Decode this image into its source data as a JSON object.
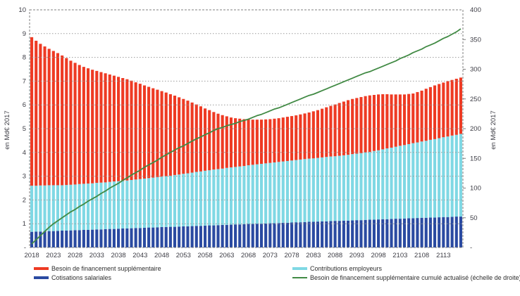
{
  "chart_data": {
    "type": "combo-stacked-bar-line",
    "title": "",
    "left_axis": {
      "title": "en Md€ 2017",
      "min": 0,
      "max": 10,
      "tick_step": 1,
      "tick_labels": [
        "10",
        "9",
        "8",
        "7",
        "6",
        "5",
        "4",
        "3",
        "2",
        "1",
        "-"
      ]
    },
    "right_axis": {
      "title": "en Md€ 2017",
      "min": 0,
      "max": 400,
      "tick_step": 50,
      "tick_labels": [
        "400",
        "350",
        "300",
        "250",
        "200",
        "150",
        "100",
        "50",
        "-"
      ]
    },
    "x_tick_labels": [
      "2018",
      "2023",
      "2028",
      "2033",
      "2038",
      "2043",
      "2048",
      "2053",
      "2058",
      "2063",
      "2068",
      "2073",
      "2078",
      "2083",
      "2088",
      "2093",
      "2098",
      "2103",
      "2108",
      "2113"
    ],
    "x": [
      2018,
      2019,
      2020,
      2021,
      2022,
      2023,
      2024,
      2025,
      2026,
      2027,
      2028,
      2029,
      2030,
      2031,
      2032,
      2033,
      2034,
      2035,
      2036,
      2037,
      2038,
      2039,
      2040,
      2041,
      2042,
      2043,
      2044,
      2045,
      2046,
      2047,
      2048,
      2049,
      2050,
      2051,
      2052,
      2053,
      2054,
      2055,
      2056,
      2057,
      2058,
      2059,
      2060,
      2061,
      2062,
      2063,
      2064,
      2065,
      2066,
      2067,
      2068,
      2069,
      2070,
      2071,
      2072,
      2073,
      2074,
      2075,
      2076,
      2077,
      2078,
      2079,
      2080,
      2081,
      2082,
      2083,
      2084,
      2085,
      2086,
      2087,
      2088,
      2089,
      2090,
      2091,
      2092,
      2093,
      2094,
      2095,
      2096,
      2097,
      2098,
      2099,
      2100,
      2101,
      2102,
      2103,
      2104,
      2105,
      2106,
      2107,
      2108,
      2109,
      2110,
      2111,
      2112,
      2113,
      2114,
      2115,
      2116,
      2117
    ],
    "series": [
      {
        "name": "Cotisations salariales",
        "type": "bar",
        "stack_index": 1,
        "color": "#2a4aa1",
        "values": [
          0.66,
          0.67,
          0.67,
          0.68,
          0.69,
          0.69,
          0.7,
          0.71,
          0.71,
          0.72,
          0.73,
          0.73,
          0.74,
          0.74,
          0.75,
          0.76,
          0.76,
          0.77,
          0.78,
          0.78,
          0.79,
          0.8,
          0.8,
          0.81,
          0.82,
          0.82,
          0.83,
          0.84,
          0.84,
          0.85,
          0.86,
          0.86,
          0.87,
          0.87,
          0.88,
          0.89,
          0.89,
          0.9,
          0.91,
          0.91,
          0.92,
          0.93,
          0.93,
          0.94,
          0.95,
          0.95,
          0.96,
          0.97,
          0.97,
          0.98,
          0.99,
          0.99,
          1.0,
          1.0,
          1.01,
          1.02,
          1.02,
          1.03,
          1.04,
          1.04,
          1.05,
          1.06,
          1.06,
          1.07,
          1.08,
          1.08,
          1.09,
          1.1,
          1.1,
          1.11,
          1.12,
          1.12,
          1.13,
          1.13,
          1.14,
          1.15,
          1.15,
          1.16,
          1.17,
          1.17,
          1.18,
          1.19,
          1.19,
          1.2,
          1.21,
          1.21,
          1.22,
          1.23,
          1.23,
          1.24,
          1.25,
          1.25,
          1.26,
          1.26,
          1.27,
          1.28,
          1.28,
          1.29,
          1.3,
          1.3
        ]
      },
      {
        "name": "Contributions employeurs",
        "type": "bar",
        "stack_index": 2,
        "color": "#7fd8e4",
        "values": [
          1.94,
          1.93,
          1.94,
          1.93,
          1.93,
          1.93,
          1.92,
          1.91,
          1.92,
          1.92,
          1.92,
          1.94,
          1.94,
          1.95,
          1.95,
          1.96,
          1.97,
          1.97,
          1.98,
          2.0,
          2.0,
          2.0,
          2.02,
          2.03,
          2.04,
          2.06,
          2.07,
          2.08,
          2.1,
          2.11,
          2.12,
          2.14,
          2.15,
          2.18,
          2.19,
          2.21,
          2.23,
          2.25,
          2.27,
          2.29,
          2.31,
          2.32,
          2.35,
          2.36,
          2.37,
          2.4,
          2.41,
          2.42,
          2.44,
          2.45,
          2.47,
          2.49,
          2.5,
          2.52,
          2.53,
          2.54,
          2.56,
          2.57,
          2.58,
          2.6,
          2.61,
          2.62,
          2.64,
          2.65,
          2.66,
          2.67,
          2.68,
          2.69,
          2.71,
          2.72,
          2.72,
          2.74,
          2.75,
          2.77,
          2.79,
          2.8,
          2.82,
          2.84,
          2.85,
          2.89,
          2.91,
          2.94,
          2.98,
          3.0,
          3.03,
          3.07,
          3.09,
          3.12,
          3.16,
          3.18,
          3.21,
          3.24,
          3.27,
          3.3,
          3.33,
          3.36,
          3.39,
          3.42,
          3.44,
          3.48
        ]
      },
      {
        "name": "Besoin de financement supplémentaire",
        "type": "bar",
        "stack_index": 3,
        "color": "#ee3a23",
        "values": [
          6.25,
          6.1,
          5.96,
          5.85,
          5.74,
          5.65,
          5.56,
          5.46,
          5.34,
          5.22,
          5.12,
          5.01,
          4.92,
          4.85,
          4.78,
          4.71,
          4.65,
          4.59,
          4.52,
          4.45,
          4.39,
          4.33,
          4.26,
          4.18,
          4.09,
          4.01,
          3.92,
          3.84,
          3.76,
          3.68,
          3.6,
          3.52,
          3.43,
          3.34,
          3.25,
          3.15,
          3.06,
          2.95,
          2.84,
          2.74,
          2.62,
          2.53,
          2.42,
          2.33,
          2.25,
          2.17,
          2.1,
          2.05,
          2.01,
          1.97,
          1.93,
          1.9,
          1.88,
          1.86,
          1.85,
          1.84,
          1.84,
          1.84,
          1.85,
          1.86,
          1.87,
          1.88,
          1.9,
          1.92,
          1.94,
          1.98,
          2.01,
          2.05,
          2.09,
          2.13,
          2.18,
          2.22,
          2.26,
          2.3,
          2.32,
          2.34,
          2.36,
          2.37,
          2.38,
          2.36,
          2.35,
          2.32,
          2.28,
          2.24,
          2.2,
          2.16,
          2.13,
          2.11,
          2.09,
          2.12,
          2.14,
          2.19,
          2.22,
          2.26,
          2.28,
          2.3,
          2.33,
          2.34,
          2.36,
          2.37
        ]
      },
      {
        "name": "Besoin de financement supplémentaire cumulé actualisé (échelle de droite)",
        "type": "line",
        "axis": "right",
        "color": "#418a44",
        "values": [
          6,
          13,
          20,
          27,
          34,
          40,
          45,
          50,
          55,
          60,
          64,
          69,
          73,
          78,
          82,
          86,
          91,
          95,
          100,
          104,
          108,
          113,
          117,
          122,
          126,
          130,
          135,
          139,
          143,
          147,
          152,
          156,
          160,
          164,
          168,
          171,
          175,
          179,
          183,
          186,
          190,
          193,
          197,
          200,
          202,
          205,
          207,
          209,
          212,
          214,
          216,
          219,
          222,
          224,
          227,
          230,
          233,
          235,
          238,
          241,
          244,
          247,
          250,
          253,
          256,
          258,
          261,
          264,
          267,
          270,
          273,
          276,
          279,
          282,
          285,
          288,
          291,
          294,
          296,
          299,
          302,
          305,
          308,
          311,
          314,
          318,
          321,
          324,
          328,
          331,
          334,
          338,
          341,
          344,
          348,
          352,
          355,
          359,
          363,
          368
        ]
      }
    ],
    "legend": {
      "items": [
        {
          "label": "Besoin de financement supplémentaire",
          "series_index": 2,
          "style": "bar"
        },
        {
          "label": "Cotisations salariales",
          "series_index": 0,
          "style": "bar"
        },
        {
          "label": "Contributions employeurs",
          "series_index": 1,
          "style": "bar"
        },
        {
          "label": "Besoin de financement supplémentaire cumulé actualisé (échelle de droite)",
          "series_index": 3,
          "style": "line"
        }
      ]
    },
    "grid": {
      "color": "#969696",
      "border_color": "#7f7f7f",
      "style": "dashed"
    },
    "text_color": "#3d3d45"
  }
}
